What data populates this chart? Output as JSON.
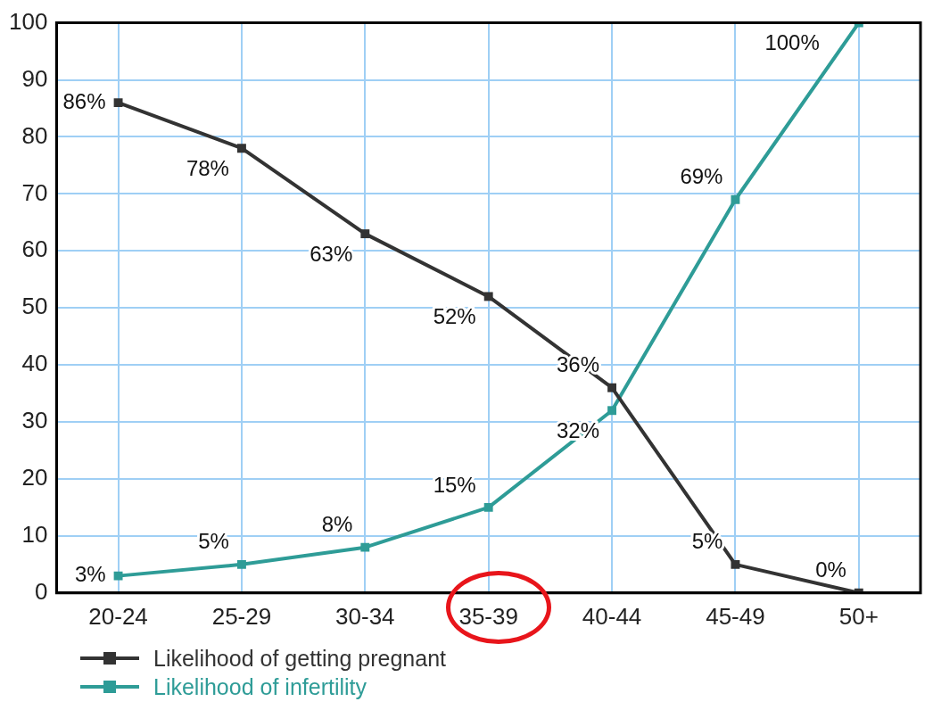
{
  "chart_data": {
    "type": "line",
    "categories": [
      "20-24",
      "25-29",
      "30-34",
      "35-39",
      "40-44",
      "45-49",
      "50+"
    ],
    "series": [
      {
        "name": "Likelihood of getting pregnant",
        "color": "#333333",
        "values": [
          86,
          78,
          63,
          52,
          36,
          5,
          0
        ],
        "value_labels": [
          "86%",
          "78%",
          "63%",
          "52%",
          "36%",
          "5%",
          "0%"
        ]
      },
      {
        "name": "Likelihood of infertility",
        "color": "#2e9c97",
        "values": [
          3,
          5,
          8,
          15,
          32,
          69,
          100
        ],
        "value_labels": [
          "3%",
          "5%",
          "8%",
          "15%",
          "32%",
          "69%",
          "100%"
        ]
      }
    ],
    "ylim": [
      0,
      100
    ],
    "yticks": [
      0,
      10,
      20,
      30,
      40,
      50,
      60,
      70,
      80,
      90,
      100
    ],
    "grid": true,
    "marker": "square",
    "line_style": "solid",
    "legend": "bottom left"
  }
}
